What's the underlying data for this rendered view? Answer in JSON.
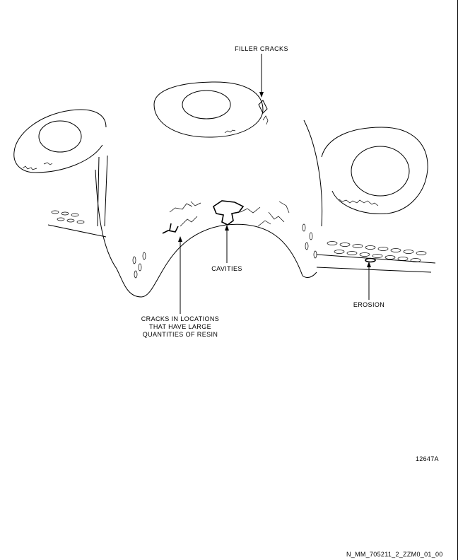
{
  "callouts": {
    "filler_cracks": "FILLER CRACKS",
    "cavities": "CAVITIES",
    "cracks_line1": "CRACKS IN LOCATIONS",
    "cracks_line2": "THAT HAVE LARGE",
    "cracks_line3": "QUANTITIES OF RESIN",
    "erosion": "EROSION"
  },
  "figure_number": "12647A",
  "document_id": "N_MM_705211_2_ZZM0_01_00"
}
